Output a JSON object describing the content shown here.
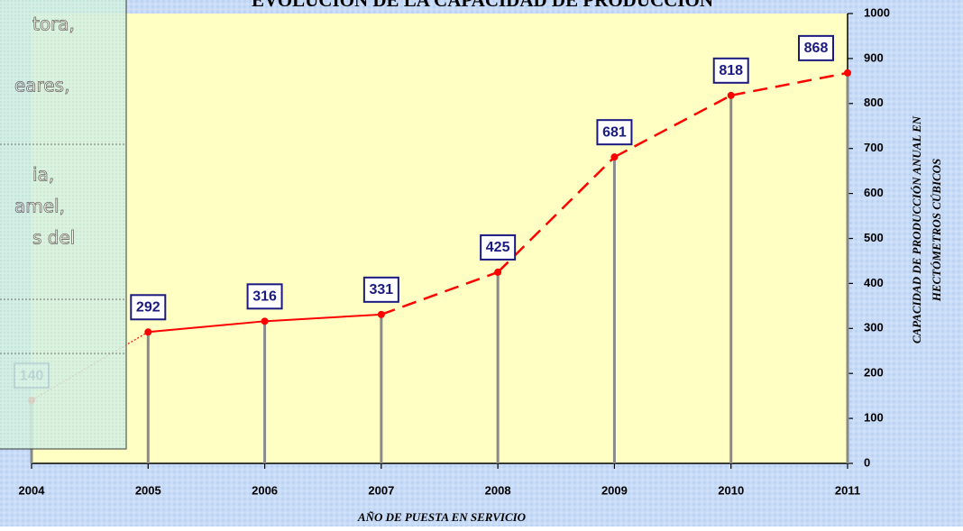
{
  "chart_data": {
    "type": "line",
    "title": "EVOLUCIÓN DE LA CAPACIDAD DE PRODUCCIÓN",
    "x_label": "AÑO DE PUESTA EN SERVICIO",
    "y_label": [
      "CAPACIDAD DE PRODUCCIÓN ANUAL EN",
      "HECTÓMETROS CÚBICOS"
    ],
    "categories": [
      "2004",
      "2005",
      "2006",
      "2007",
      "2008",
      "2009",
      "2010",
      "2011"
    ],
    "values": [
      140,
      292,
      316,
      331,
      425,
      681,
      818,
      868
    ],
    "color": "#ff0000",
    "ylim": [
      0,
      1000
    ],
    "yticks": [
      0,
      100,
      200,
      300,
      400,
      500,
      600,
      700,
      800,
      900,
      1000
    ],
    "y_axis_side": "right"
  },
  "overlay_panel": {
    "lines": [
      "tora,",
      "eares,",
      "ia,",
      "amel,",
      "s del"
    ]
  }
}
